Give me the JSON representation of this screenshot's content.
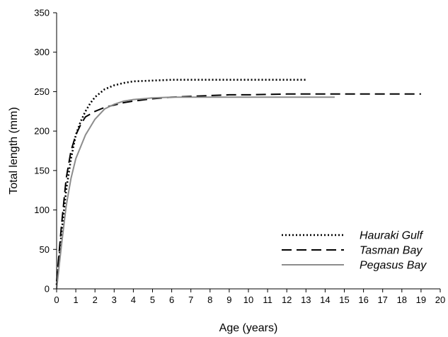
{
  "chart_data": {
    "type": "line",
    "title": "",
    "xlabel": "Age (years)",
    "ylabel": "Total length (mm)",
    "xlim": [
      0,
      20
    ],
    "ylim": [
      0,
      350
    ],
    "x_ticks": [
      0,
      1,
      2,
      3,
      4,
      5,
      6,
      7,
      8,
      9,
      10,
      11,
      12,
      13,
      14,
      15,
      16,
      17,
      18,
      19,
      20
    ],
    "y_ticks": [
      0,
      50,
      100,
      150,
      200,
      250,
      300,
      350
    ],
    "grid": false,
    "legend": "bottom-right",
    "series": [
      {
        "name": "Hauraki Gulf",
        "color": "#000000",
        "style": "dotted",
        "x": [
          0,
          0.25,
          0.5,
          0.75,
          1,
          1.25,
          1.5,
          1.75,
          2,
          2.5,
          3,
          3.5,
          4,
          5,
          6,
          7,
          8,
          9,
          10,
          11,
          12,
          13
        ],
        "y": [
          5,
          70,
          125,
          165,
          195,
          212,
          225,
          235,
          243,
          253,
          258,
          261,
          263,
          264,
          265,
          265,
          265,
          265,
          265,
          265,
          265,
          265
        ]
      },
      {
        "name": "Tasman Bay",
        "color": "#000000",
        "style": "dashed",
        "x": [
          0,
          0.25,
          0.5,
          0.75,
          1,
          1.25,
          1.5,
          2,
          2.5,
          3,
          3.5,
          4,
          5,
          6,
          7,
          8,
          9,
          10,
          12,
          14,
          16,
          19
        ],
        "y": [
          10,
          80,
          140,
          175,
          195,
          208,
          218,
          225,
          230,
          233,
          236,
          238,
          241,
          243,
          244,
          245,
          246,
          246,
          247,
          247,
          247,
          247
        ]
      },
      {
        "name": "Pegasus Bay",
        "color": "#8c8c8c",
        "style": "solid",
        "x": [
          0,
          0.25,
          0.5,
          0.75,
          1,
          1.5,
          2,
          2.5,
          3,
          3.5,
          4,
          4.5,
          5,
          6,
          7,
          8,
          9,
          10,
          12,
          14.5
        ],
        "y": [
          0,
          55,
          105,
          140,
          165,
          195,
          215,
          228,
          234,
          238,
          240,
          241,
          242,
          243,
          243,
          243,
          243,
          243,
          243,
          243
        ]
      }
    ]
  }
}
